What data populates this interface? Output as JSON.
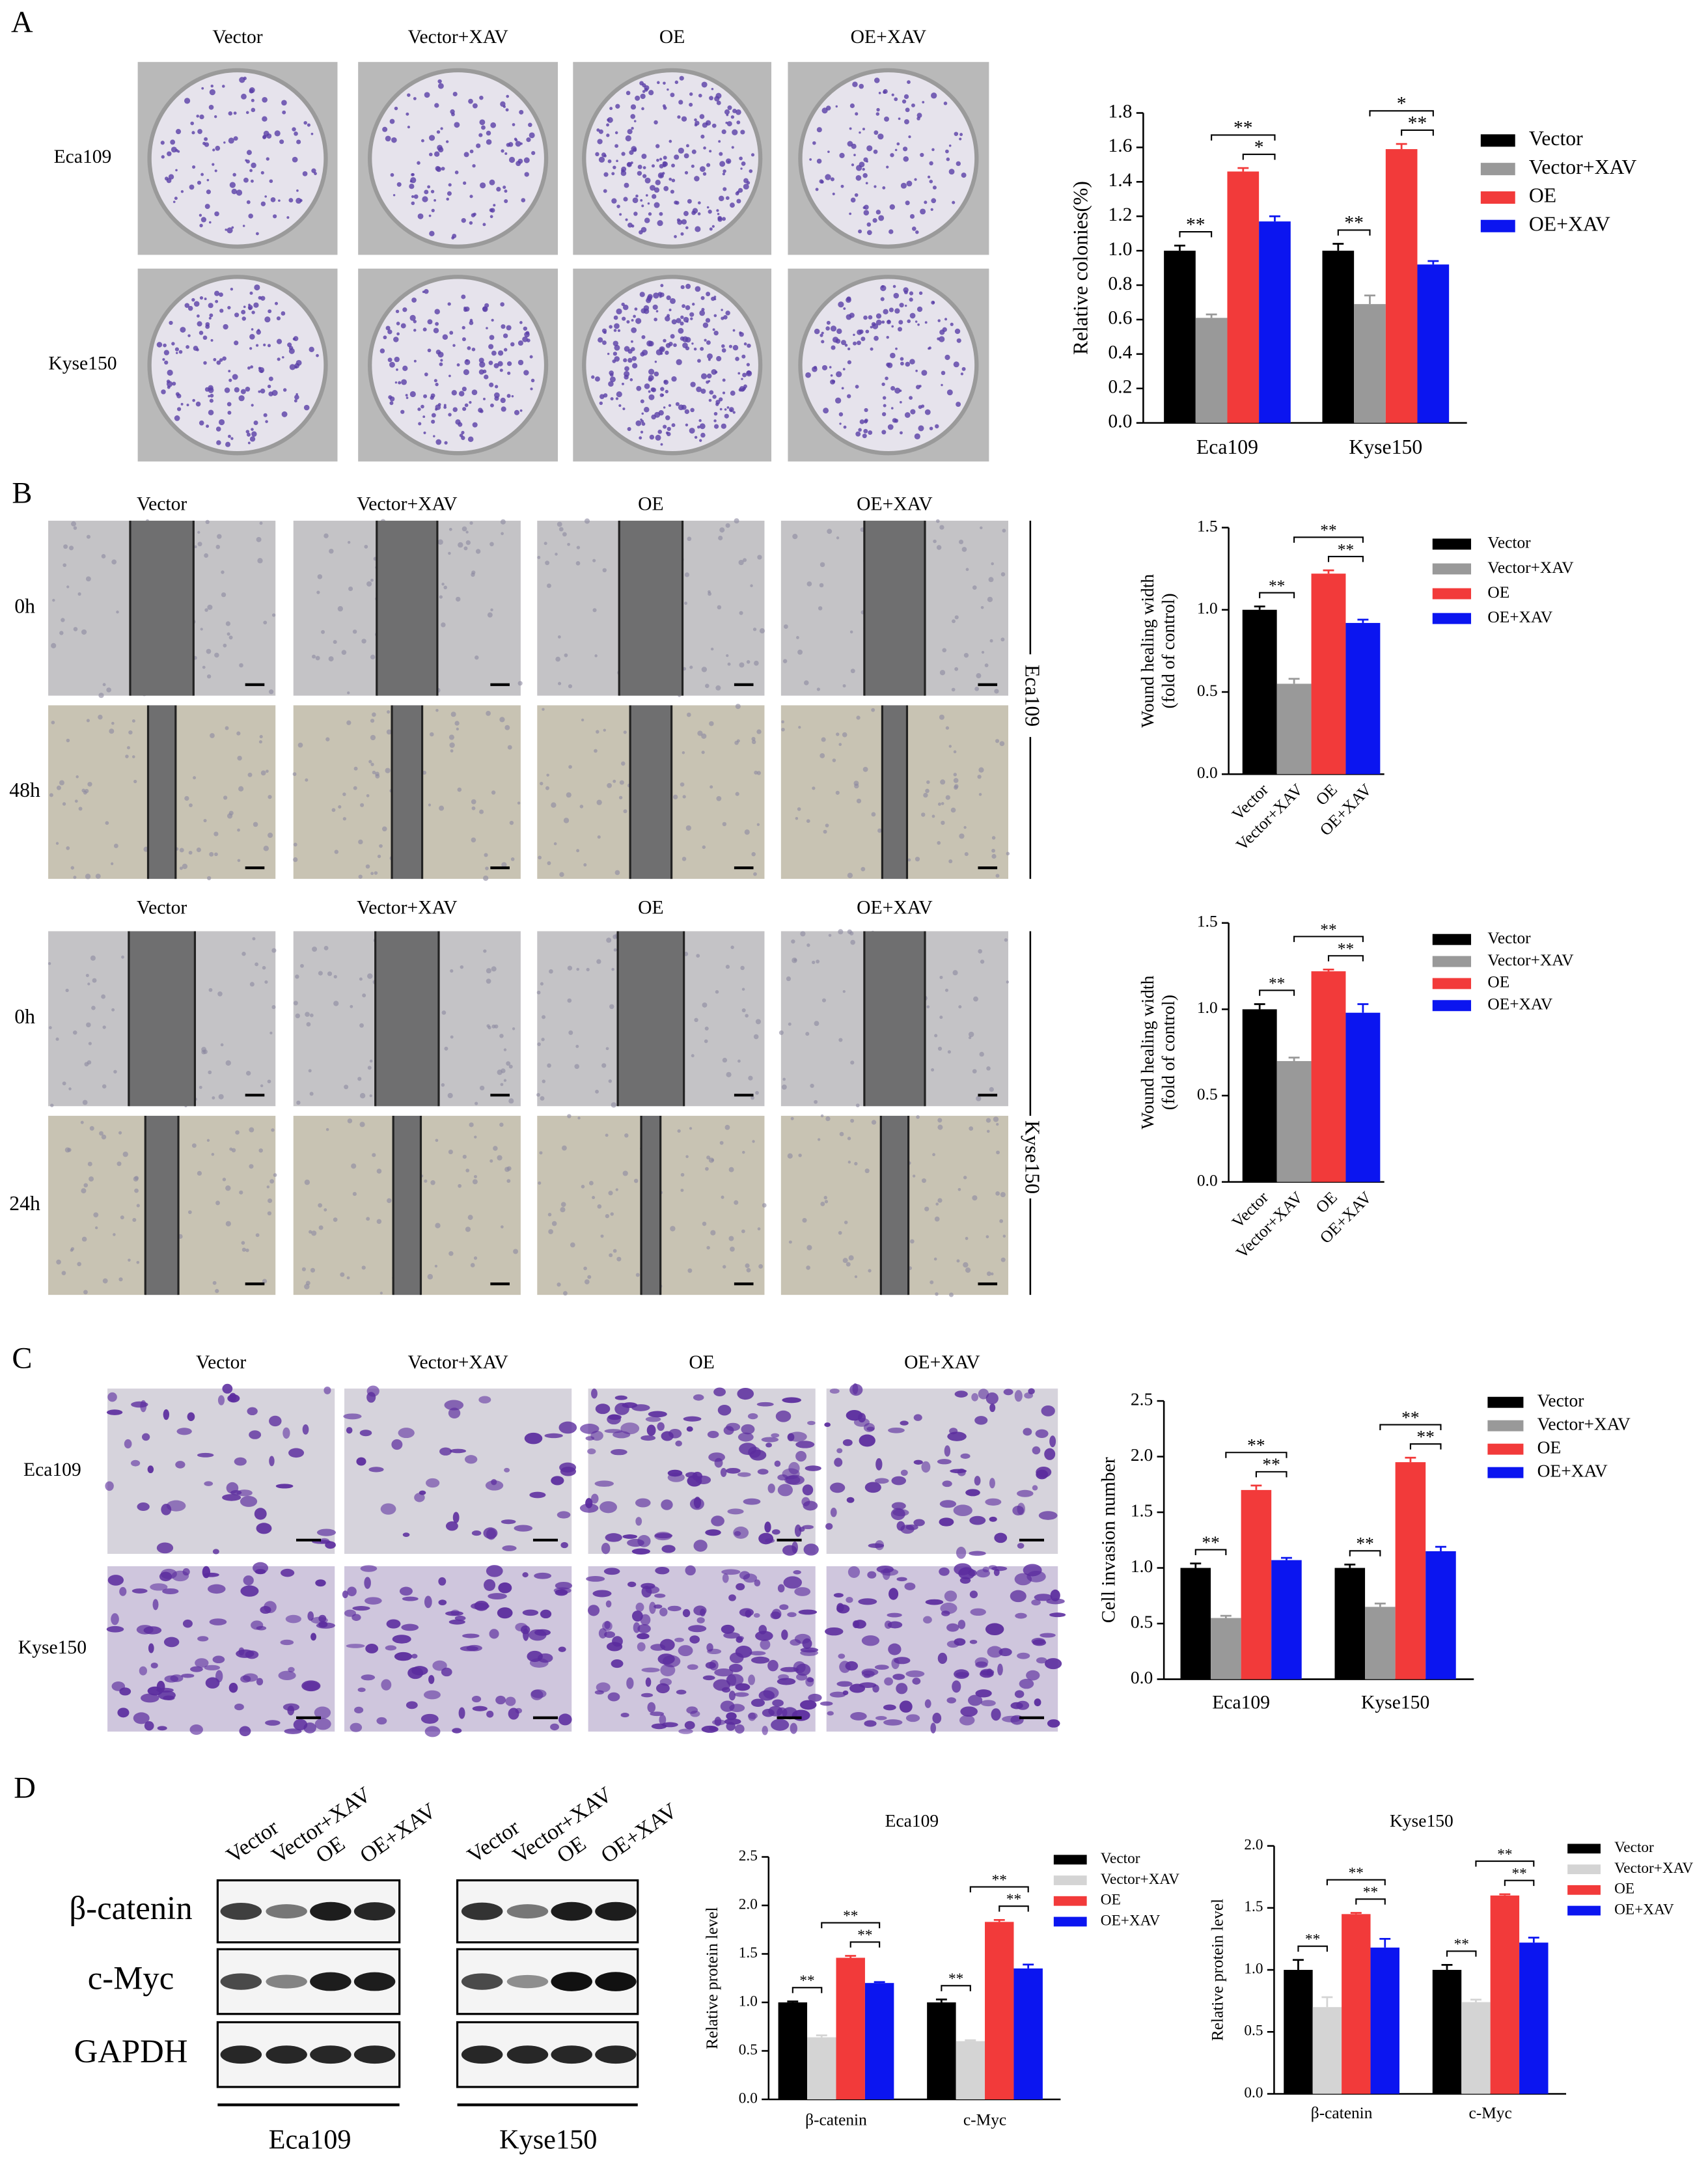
{
  "panels": {
    "A": {
      "letter": "A",
      "columns": [
        "Vector",
        "Vector+XAV",
        "OE",
        "OE+XAV"
      ],
      "rows": [
        "Eca109",
        "Kyse150"
      ]
    },
    "B": {
      "letter": "B",
      "eca": {
        "columns": [
          "Vector",
          "Vector+XAV",
          "OE",
          "OE+XAV"
        ],
        "rows": [
          "0h",
          "48h"
        ],
        "side": "Eca109"
      },
      "kyse": {
        "columns": [
          "Vector",
          "Vector+XAV",
          "OE",
          "OE+XAV"
        ],
        "rows": [
          "0h",
          "24h"
        ],
        "side": "Kyse150"
      }
    },
    "C": {
      "letter": "C",
      "columns": [
        "Vector",
        "Vector+XAV",
        "OE",
        "OE+XAV"
      ],
      "rows": [
        "Eca109",
        "Kyse150"
      ]
    },
    "D": {
      "letter": "D",
      "proteins": [
        "β-catenin",
        "c-Myc",
        "GAPDH"
      ],
      "blots": [
        {
          "lanes": [
            "Vector",
            "Vector+XAV",
            "OE",
            "OE+XAV"
          ],
          "cell": "Eca109"
        },
        {
          "lanes": [
            "Vector",
            "Vector+XAV",
            "OE",
            "OE+XAV"
          ],
          "cell": "Kyse150"
        }
      ]
    }
  },
  "chart_data": [
    {
      "type": "grouped-bar",
      "ylabel": [
        "Relative colonies(%)"
      ],
      "categories": [
        "Eca109",
        "Kyse150"
      ],
      "series": [
        {
          "name": "Vector",
          "color": "#000000",
          "values": [
            1.0,
            1.0
          ],
          "errors": [
            0.03,
            0.04
          ]
        },
        {
          "name": "Vector+XAV",
          "color": "#999999",
          "values": [
            0.61,
            0.69
          ],
          "errors": [
            0.02,
            0.05
          ]
        },
        {
          "name": "OE",
          "color": "#f23a3a",
          "values": [
            1.46,
            1.59
          ],
          "errors": [
            0.02,
            0.03
          ]
        },
        {
          "name": "OE+XAV",
          "color": "#0b15f0",
          "values": [
            1.17,
            0.92
          ],
          "errors": [
            0.03,
            0.02
          ]
        }
      ],
      "ylim": [
        0,
        1.8
      ],
      "yticks": [
        {
          "value": 0,
          "label": "0.0"
        },
        0.2,
        0.4,
        0.6,
        0.8,
        {
          "value": 1,
          "label": "1.0"
        },
        1.2,
        1.4,
        1.6,
        1.8
      ],
      "annotations": [
        "**",
        "**",
        "*",
        "**",
        "*",
        "**"
      ]
    },
    {
      "type": "bar",
      "ylabel": [
        "Wound healing  width",
        "(fold of control)"
      ],
      "categories": [
        "Vector",
        "Vector+XAV",
        "OE",
        "OE+XAV"
      ],
      "values": [
        1.0,
        0.55,
        1.22,
        0.92
      ],
      "errors": [
        0.02,
        0.03,
        0.02,
        0.02
      ],
      "colors": [
        "#000000",
        "#999999",
        "#f23a3a",
        "#0b15f0"
      ],
      "ylim": [
        0,
        1.5
      ],
      "yticks": [
        {
          "value": 0,
          "label": "0.0"
        },
        0.5,
        {
          "value": 1,
          "label": "1.0"
        },
        1.5
      ],
      "annotations": [
        "**",
        "**",
        "**"
      ]
    },
    {
      "type": "bar",
      "ylabel": [
        "Wound healing  width",
        "(fold of control)"
      ],
      "categories": [
        "Vector",
        "Vector+XAV",
        "OE",
        "OE+XAV"
      ],
      "values": [
        1.0,
        0.7,
        1.22,
        0.98
      ],
      "errors": [
        0.03,
        0.02,
        0.01,
        0.05
      ],
      "colors": [
        "#000000",
        "#999999",
        "#f23a3a",
        "#0b15f0"
      ],
      "ylim": [
        0,
        1.5
      ],
      "yticks": [
        {
          "value": 0,
          "label": "0.0"
        },
        0.5,
        {
          "value": 1,
          "label": "1.0"
        },
        1.5
      ],
      "annotations": [
        "**",
        "**",
        "**"
      ]
    },
    {
      "type": "grouped-bar",
      "ylabel": [
        "Cell invasion number"
      ],
      "categories": [
        "Eca109",
        "Kyse150"
      ],
      "series": [
        {
          "name": "Vector",
          "color": "#000000",
          "values": [
            1.0,
            1.0
          ],
          "errors": [
            0.04,
            0.03
          ]
        },
        {
          "name": "Vector+XAV",
          "color": "#999999",
          "values": [
            0.55,
            0.65
          ],
          "errors": [
            0.02,
            0.03
          ]
        },
        {
          "name": "OE",
          "color": "#f23a3a",
          "values": [
            1.7,
            1.95
          ],
          "errors": [
            0.04,
            0.04
          ]
        },
        {
          "name": "OE+XAV",
          "color": "#0b15f0",
          "values": [
            1.07,
            1.15
          ],
          "errors": [
            0.02,
            0.04
          ]
        }
      ],
      "ylim": [
        0,
        2.5
      ],
      "yticks": [
        {
          "value": 0,
          "label": "0.0"
        },
        0.5,
        {
          "value": 1,
          "label": "1.0"
        },
        1.5,
        {
          "value": 2,
          "label": "2.0"
        },
        2.5
      ],
      "annotations": [
        "**",
        "**",
        "**",
        "**",
        "**",
        "**"
      ]
    },
    {
      "type": "grouped-bar",
      "title": "Eca109",
      "ylabel": [
        "Relative protein level"
      ],
      "categories": [
        "β-catenin",
        "c-Myc"
      ],
      "series": [
        {
          "name": "Vector",
          "color": "#000000",
          "values": [
            1.0,
            1.0
          ],
          "errors": [
            0.01,
            0.03
          ]
        },
        {
          "name": "Vector+XAV",
          "color": "#d4d4d4",
          "values": [
            0.64,
            0.6
          ],
          "errors": [
            0.02,
            0.01
          ]
        },
        {
          "name": "OE",
          "color": "#f23a3a",
          "values": [
            1.46,
            1.83
          ],
          "errors": [
            0.02,
            0.02
          ]
        },
        {
          "name": "OE+XAV",
          "color": "#0b15f0",
          "values": [
            1.2,
            1.35
          ],
          "errors": [
            0.01,
            0.04
          ]
        }
      ],
      "ylim": [
        0,
        2.5
      ],
      "yticks": [
        {
          "value": 0,
          "label": "0.0"
        },
        0.5,
        {
          "value": 1,
          "label": "1.0"
        },
        1.5,
        {
          "value": 2,
          "label": "2.0"
        },
        2.5
      ],
      "annotations": [
        "**",
        "**",
        "**",
        "**",
        "**",
        "**"
      ]
    },
    {
      "type": "grouped-bar",
      "title": "Kyse150",
      "ylabel": [
        "Relative protein level"
      ],
      "categories": [
        "β-catenin",
        "c-Myc"
      ],
      "series": [
        {
          "name": "Vector",
          "color": "#000000",
          "values": [
            1.0,
            1.0
          ],
          "errors": [
            0.08,
            0.04
          ]
        },
        {
          "name": "Vector+XAV",
          "color": "#d4d4d4",
          "values": [
            0.7,
            0.74
          ],
          "errors": [
            0.08,
            0.02
          ]
        },
        {
          "name": "OE",
          "color": "#f23a3a",
          "values": [
            1.45,
            1.6
          ],
          "errors": [
            0.01,
            0.01
          ]
        },
        {
          "name": "OE+XAV",
          "color": "#0b15f0",
          "values": [
            1.18,
            1.22
          ],
          "errors": [
            0.07,
            0.04
          ]
        }
      ],
      "ylim": [
        0,
        2.0
      ],
      "yticks": [
        {
          "value": 0,
          "label": "0.0"
        },
        0.5,
        {
          "value": 1,
          "label": "1.0"
        },
        1.5,
        {
          "value": 2,
          "label": "2.0"
        }
      ],
      "annotations": [
        "**",
        "**",
        "**",
        "**",
        "**",
        "**"
      ]
    }
  ]
}
